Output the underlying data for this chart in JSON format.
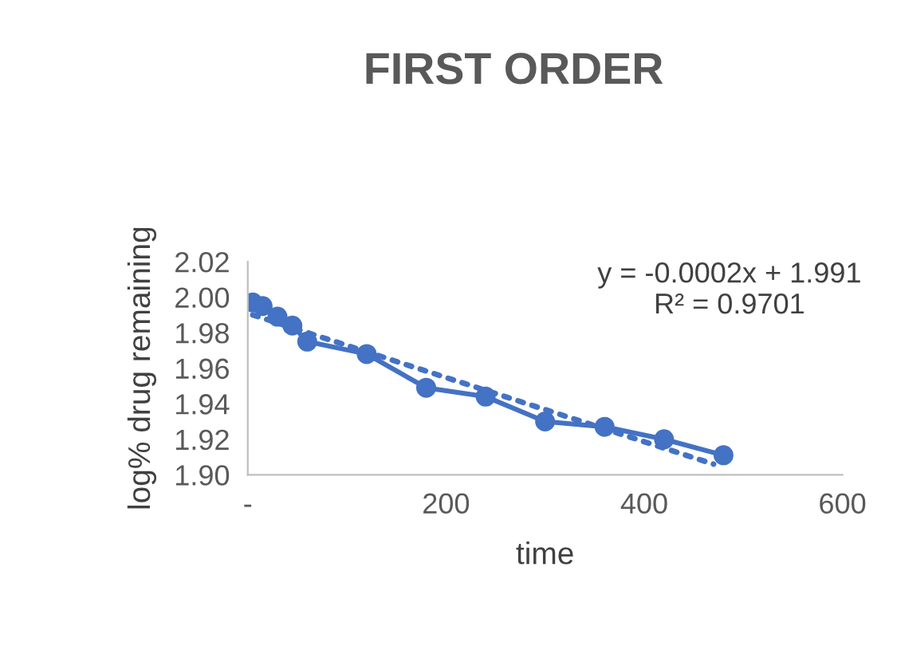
{
  "chart_data": {
    "type": "line",
    "title": "FIRST ORDER",
    "xlabel": "time",
    "ylabel": "log% drug remaining",
    "series": [
      {
        "type": "line",
        "color": "#4472c4",
        "marker": "circle",
        "line_style": "solid",
        "x": [
          5,
          15,
          30,
          45,
          60,
          120,
          180,
          240,
          300,
          360,
          420,
          480
        ],
        "values": [
          1.997,
          1.995,
          1.989,
          1.984,
          1.975,
          1.968,
          1.949,
          1.944,
          1.93,
          1.927,
          1.92,
          1.911
        ]
      },
      {
        "type": "line",
        "color": "#4472c4",
        "marker": "none",
        "line_style": "dotted",
        "x": [
          5,
          470
        ],
        "values": [
          1.99,
          1.906
        ]
      }
    ],
    "annotations": [
      "y = -0.0002x + 1.991\nR² = 0.9701"
    ],
    "xlim": [
      0,
      600
    ],
    "xticks": [
      {
        "value": 0,
        "label": "-"
      },
      200,
      400,
      600
    ],
    "ylim": [
      1.9,
      2.02
    ],
    "yticks": [
      {
        "value": 1.9,
        "label": "1.90"
      },
      {
        "value": 1.92,
        "label": "1.92"
      },
      {
        "value": 1.94,
        "label": "1.94"
      },
      {
        "value": 1.96,
        "label": "1.96"
      },
      {
        "value": 1.98,
        "label": "1.98"
      },
      {
        "value": 2.0,
        "label": "2.00"
      },
      {
        "value": 2.02,
        "label": "2.02"
      }
    ],
    "grid": false,
    "legend": false
  }
}
